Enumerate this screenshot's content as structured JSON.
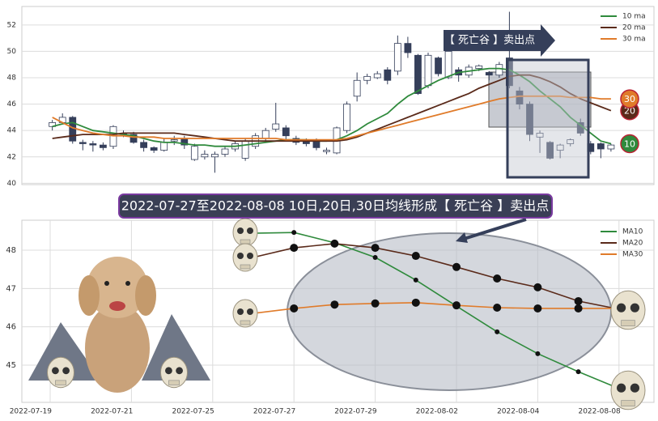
{
  "chart_data": [
    {
      "type": "candlestick",
      "open": [
        44.3,
        44.6,
        45.0,
        43.1,
        43.0,
        42.9,
        42.8,
        43.8,
        43.7,
        43.1,
        42.7,
        42.5,
        43.2,
        43.4,
        41.8,
        42.0,
        42.0,
        42.2,
        42.6,
        41.9,
        42.8,
        43.4,
        44.1,
        44.2,
        43.4,
        43.3,
        43.2,
        42.4,
        42.3,
        44.0,
        46.6,
        47.8,
        48.0,
        48.6,
        48.5,
        50.6,
        49.7,
        47.4,
        49.5,
        48.0,
        48.6,
        48.2,
        48.7,
        48.4,
        48.2,
        49.5,
        47.0,
        46.0,
        43.5,
        43.1,
        42.5,
        43.0,
        44.6,
        43.0,
        43.0,
        42.6
      ],
      "high": [
        44.8,
        45.3,
        45.1,
        43.3,
        43.2,
        43.1,
        44.4,
        44.0,
        43.9,
        43.3,
        42.8,
        43.4,
        43.6,
        43.6,
        43.0,
        42.5,
        42.4,
        42.8,
        43.2,
        43.4,
        43.8,
        44.2,
        46.1,
        44.4,
        43.6,
        43.4,
        43.4,
        42.7,
        44.3,
        46.2,
        48.4,
        48.3,
        48.5,
        48.8,
        51.2,
        51.1,
        49.8,
        49.9,
        49.6,
        50.1,
        48.8,
        49.0,
        49.0,
        48.5,
        49.2,
        53.0,
        47.3,
        46.2,
        44.0,
        43.2,
        43.0,
        43.4,
        44.9,
        43.2,
        43.1,
        43.0
      ],
      "low": [
        44.0,
        44.5,
        43.0,
        42.5,
        42.4,
        42.5,
        42.6,
        43.5,
        43.0,
        42.4,
        42.3,
        42.4,
        42.9,
        42.6,
        41.7,
        41.8,
        40.8,
        42.0,
        42.4,
        41.7,
        42.6,
        43.2,
        43.9,
        43.3,
        42.9,
        42.8,
        42.5,
        42.2,
        42.2,
        43.8,
        46.2,
        47.5,
        47.9,
        47.5,
        48.2,
        49.5,
        46.7,
        47.2,
        48.1,
        47.9,
        47.7,
        48.0,
        48.5,
        47.8,
        48.0,
        47.2,
        45.6,
        43.2,
        42.3,
        41.8,
        41.9,
        42.8,
        43.6,
        42.2,
        41.9,
        42.4
      ],
      "close": [
        44.6,
        45.0,
        43.2,
        43.0,
        42.9,
        42.7,
        44.3,
        43.7,
        43.1,
        42.7,
        42.5,
        43.1,
        43.3,
        42.9,
        42.8,
        42.2,
        42.2,
        42.6,
        43.0,
        43.2,
        43.6,
        44.0,
        44.5,
        43.6,
        43.1,
        43.0,
        42.7,
        42.5,
        44.2,
        46.0,
        47.8,
        48.1,
        48.3,
        47.8,
        50.6,
        49.9,
        46.8,
        49.7,
        48.3,
        50.0,
        48.2,
        48.8,
        48.9,
        48.2,
        49.0,
        47.4,
        46.0,
        43.7,
        43.8,
        41.9,
        42.9,
        43.3,
        43.8,
        42.4,
        42.6,
        42.9
      ],
      "up_color": "#ffffff",
      "down_color": "#353f5a",
      "series": [
        {
          "name": "10 ma",
          "color": "#2f8a3c",
          "values": [
            44.3,
            44.5,
            44.6,
            44.3,
            44.0,
            43.9,
            43.8,
            43.7,
            43.6,
            43.4,
            43.2,
            43.1,
            43.1,
            43.0,
            42.9,
            42.9,
            42.8,
            42.8,
            42.8,
            42.9,
            43.0,
            43.1,
            43.2,
            43.3,
            43.3,
            43.3,
            43.2,
            43.2,
            43.3,
            43.6,
            44.0,
            44.5,
            44.9,
            45.3,
            46.0,
            46.6,
            47.0,
            47.4,
            47.8,
            48.1,
            48.4,
            48.5,
            48.6,
            48.7,
            48.7,
            48.6,
            48.2,
            47.7,
            47.0,
            46.4,
            45.8,
            45.0,
            44.4,
            43.8,
            43.2,
            43.0
          ]
        },
        {
          "name": "20 ma",
          "color": "#5a2a1a",
          "values": [
            43.4,
            43.5,
            43.6,
            43.7,
            43.7,
            43.7,
            43.7,
            43.8,
            43.8,
            43.8,
            43.8,
            43.8,
            43.8,
            43.7,
            43.6,
            43.5,
            43.4,
            43.3,
            43.2,
            43.2,
            43.2,
            43.2,
            43.2,
            43.2,
            43.2,
            43.2,
            43.2,
            43.2,
            43.2,
            43.3,
            43.5,
            43.8,
            44.1,
            44.4,
            44.7,
            45.0,
            45.3,
            45.6,
            45.9,
            46.2,
            46.5,
            46.8,
            47.2,
            47.5,
            47.8,
            48.1,
            48.2,
            48.2,
            48.0,
            47.7,
            47.3,
            46.8,
            46.4,
            46.1,
            45.8,
            45.5
          ]
        },
        {
          "name": "30 ma",
          "color": "#e07b2a",
          "values": [
            45.0,
            44.6,
            44.2,
            44.0,
            43.8,
            43.7,
            43.6,
            43.6,
            43.5,
            43.5,
            43.5,
            43.4,
            43.4,
            43.4,
            43.4,
            43.4,
            43.4,
            43.4,
            43.4,
            43.4,
            43.4,
            43.4,
            43.4,
            43.3,
            43.3,
            43.3,
            43.3,
            43.3,
            43.3,
            43.4,
            43.6,
            43.8,
            44.0,
            44.2,
            44.4,
            44.6,
            44.8,
            45.0,
            45.2,
            45.4,
            45.6,
            45.8,
            46.0,
            46.2,
            46.4,
            46.5,
            46.6,
            46.6,
            46.6,
            46.6,
            46.6,
            46.5,
            46.5,
            46.5,
            46.4,
            46.4
          ]
        }
      ],
      "end_labels": [
        "10",
        "20",
        "30"
      ],
      "annotation": "【 死亡谷 】卖出点",
      "ylim": [
        39.9,
        53.4
      ],
      "yticks": [
        40,
        42,
        44,
        46,
        48,
        50,
        52
      ],
      "grid": true,
      "legend": "upper right"
    },
    {
      "type": "line",
      "title": "2022-07-27至2022-08-08 10日,20日,30日均线形成【 死亡谷 】卖出点",
      "categories": [
        "2022-07-19",
        null,
        "2022-07-21",
        null,
        "2022-07-25",
        null,
        "2022-07-27",
        null,
        "2022-07-29",
        null,
        "2022-08-02",
        null,
        "2022-08-04",
        null,
        "2022-08-08"
      ],
      "series": [
        {
          "name": "MA10",
          "color": "#2f8a3c",
          "values": [
            null,
            null,
            null,
            null,
            null,
            48.44,
            48.46,
            48.19,
            47.81,
            47.22,
            46.54,
            45.87,
            45.3,
            44.83,
            44.39
          ]
        },
        {
          "name": "MA20",
          "color": "#5a2a1a",
          "values": [
            null,
            null,
            null,
            null,
            null,
            47.81,
            48.06,
            48.17,
            48.06,
            47.85,
            47.56,
            47.26,
            47.03,
            46.67,
            46.46
          ]
        },
        {
          "name": "MA30",
          "color": "#e07b2a",
          "values": [
            null,
            null,
            null,
            null,
            null,
            46.35,
            46.48,
            46.58,
            46.61,
            46.63,
            46.56,
            46.5,
            46.48,
            46.48,
            46.48
          ]
        }
      ],
      "ylim": [
        44.03,
        48.78
      ],
      "yticks": [
        45,
        46,
        47,
        48
      ],
      "grid": true,
      "legend": "upper right",
      "markers": true
    }
  ]
}
